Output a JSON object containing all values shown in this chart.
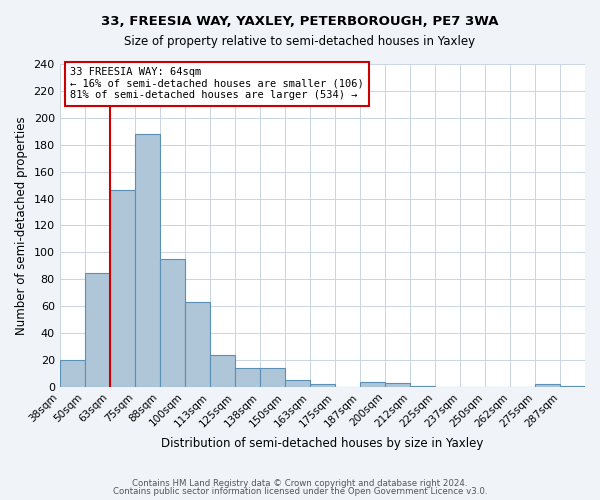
{
  "title": "33, FREESIA WAY, YAXLEY, PETERBOROUGH, PE7 3WA",
  "subtitle": "Size of property relative to semi-detached houses in Yaxley",
  "xlabel": "Distribution of semi-detached houses by size in Yaxley",
  "ylabel": "Number of semi-detached properties",
  "bin_labels": [
    "38sqm",
    "50sqm",
    "63sqm",
    "75sqm",
    "88sqm",
    "100sqm",
    "113sqm",
    "125sqm",
    "138sqm",
    "150sqm",
    "163sqm",
    "175sqm",
    "187sqm",
    "200sqm",
    "212sqm",
    "225sqm",
    "237sqm",
    "250sqm",
    "262sqm",
    "275sqm",
    "287sqm"
  ],
  "bar_heights": [
    20,
    85,
    146,
    188,
    95,
    63,
    24,
    14,
    14,
    5,
    2,
    0,
    4,
    3,
    1,
    0,
    0,
    0,
    0,
    2,
    1
  ],
  "bar_color": "#aec6d8",
  "bar_edge_color": "#5b8fb5",
  "vline_x": 2,
  "vline_color": "#cc0000",
  "annotation_title": "33 FREESIA WAY: 64sqm",
  "annotation_line1": "← 16% of semi-detached houses are smaller (106)",
  "annotation_line2": "81% of semi-detached houses are larger (534) →",
  "annotation_box_color": "#cc0000",
  "ylim": [
    0,
    240
  ],
  "yticks": [
    0,
    20,
    40,
    60,
    80,
    100,
    120,
    140,
    160,
    180,
    200,
    220,
    240
  ],
  "footer_line1": "Contains HM Land Registry data © Crown copyright and database right 2024.",
  "footer_line2": "Contains public sector information licensed under the Open Government Licence v3.0.",
  "bg_color": "#f0f4f8",
  "plot_bg_color": "#ffffff"
}
